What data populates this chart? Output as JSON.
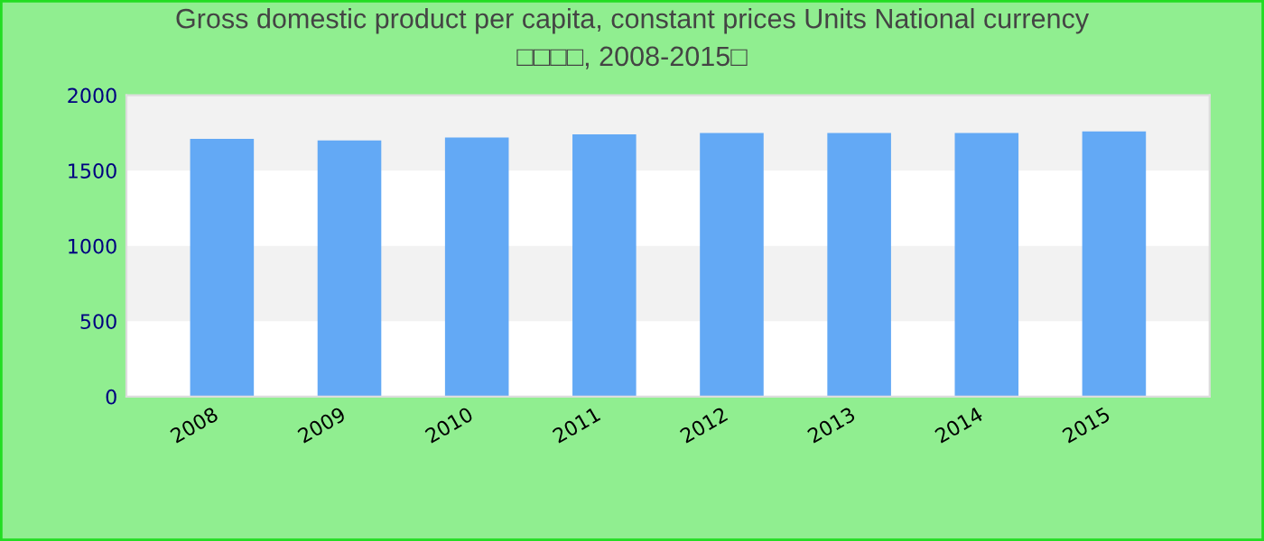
{
  "chart_data": {
    "type": "bar",
    "title": "Gross domestic product per capita, constant prices Units National currency\n□□□□, 2008-2015□",
    "categories": [
      "2008",
      "2009",
      "2010",
      "2011",
      "2012",
      "2013",
      "2014",
      "2015"
    ],
    "values": [
      1710,
      1700,
      1720,
      1740,
      1750,
      1750,
      1750,
      1760
    ],
    "color": "#63a9f5",
    "ylim": [
      0,
      2000
    ],
    "yticks": [
      0,
      500,
      1000,
      1500,
      2000
    ]
  }
}
